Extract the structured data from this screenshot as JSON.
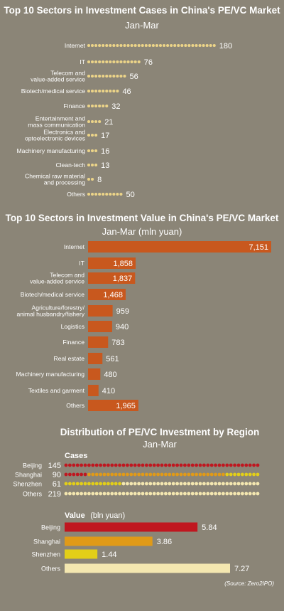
{
  "chart_data": [
    {
      "type": "bar",
      "title": "Top 10 Sectors in Investment Cases in China's PE/VC Market",
      "subtitle": "Jan-Mar",
      "unit_per_dot": 5,
      "categories": [
        "Internet",
        "IT",
        "Telecom and\nvalue-added service",
        "Biotech/medical service",
        "Finance",
        "Entertainment and\nmass communication",
        "Electronics and\noptoelectronic devices",
        "Machinery manufacturing",
        "Clean-tech",
        "Chemical raw material\nand processing",
        "Others"
      ],
      "values": [
        180,
        76,
        56,
        46,
        32,
        21,
        17,
        16,
        13,
        8,
        50
      ],
      "labels": [
        "180",
        "76",
        "56",
        "46",
        "32",
        "21",
        "17",
        "16",
        "13",
        "8",
        "50"
      ],
      "color": "#ecd488"
    },
    {
      "type": "bar",
      "title": "Top 10 Sectors in Investment Value in China's PE/VC Market",
      "subtitle": "Jan-Mar (mln yuan)",
      "categories": [
        "Internet",
        "IT",
        "Telecom and\nvalue-added service",
        "Biotech/medical service",
        "Agriculture/forestry/\nanimal husbandry/fishery",
        "Logistics",
        "Finance",
        "Real estate",
        "Machinery manufacturing",
        "Textiles and garment",
        "Others"
      ],
      "values": [
        7151,
        1858,
        1837,
        1468,
        959,
        940,
        783,
        561,
        480,
        410,
        1965
      ],
      "labels": [
        "7,151",
        "1,858",
        "1,837",
        "1,468",
        "959",
        "940",
        "783",
        "561",
        "480",
        "410",
        "1,965"
      ],
      "color": "#c8581e"
    },
    {
      "type": "bar",
      "title": "Distribution of PE/VC Investment by Region",
      "subtitle": "Jan-Mar",
      "cases": {
        "label": "Cases",
        "categories": [
          "Beijing",
          "Shanghai",
          "Shenzhen",
          "Others"
        ],
        "values": [
          145,
          90,
          61,
          219
        ],
        "colors": [
          "#c0161f",
          "#e09a18",
          "#e3cf18",
          "#f4e7b0"
        ]
      },
      "value": {
        "label": "Value",
        "unit": "(bln yuan)",
        "categories": [
          "Beijing",
          "Shanghai",
          "Shenzhen",
          "Others"
        ],
        "values": [
          5.84,
          3.86,
          1.44,
          7.27
        ],
        "labels": [
          "5.84",
          "3.86",
          "1.44",
          "7.27"
        ],
        "colors": [
          "#c0161f",
          "#e09a18",
          "#e3cf18",
          "#f4e7b0"
        ]
      }
    }
  ],
  "source": "(Source: Zero2IPO)"
}
